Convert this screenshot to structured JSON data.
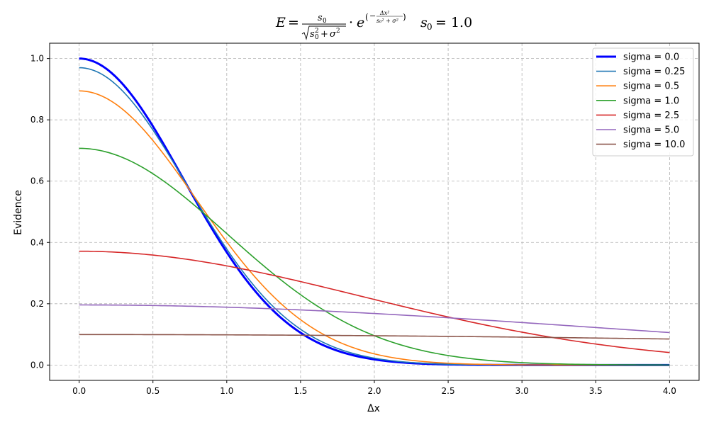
{
  "chart_data": {
    "type": "line",
    "title": {
      "E": "E",
      "eq": "=",
      "s0": "s",
      "sub0": "0",
      "sqrt_s": "s",
      "sqrt_sub0": "0",
      "sqrt_sup2": "2",
      "plus": "+",
      "sigma": "σ",
      "sigma_sup2": "2",
      "dot": "·",
      "e": "e",
      "exp_paren_open": "(",
      "exp_minus": "−",
      "exp_num": "Δx²",
      "exp_den": "s₀² + σ²",
      "exp_paren_close": ")",
      "param": "s",
      "param_sub": "0",
      "param_eq": "= 1.0"
    },
    "xlabel": "Δx",
    "ylabel": "Evidence",
    "xlim": [
      -0.2,
      4.2
    ],
    "ylim": [
      -0.05,
      1.05
    ],
    "xticks": [
      "0.0",
      "0.5",
      "1.0",
      "1.5",
      "2.0",
      "2.5",
      "3.0",
      "3.5",
      "4.0"
    ],
    "yticks": [
      "0.0",
      "0.2",
      "0.4",
      "0.6",
      "0.8",
      "1.0"
    ],
    "grid": true,
    "grid_style": "dashed",
    "legend_position": "top-right",
    "x_range": [
      0,
      4
    ],
    "s0": 1.0,
    "formula": "E = s0 / sqrt(s0^2 + sigma^2) * exp(-dx^2 / (s0^2 + sigma^2))",
    "series": [
      {
        "name": "sigma = 0.0",
        "sigma": 0.0,
        "color": "#0000ff",
        "thick": true,
        "points": [
          [
            0,
            1.0
          ],
          [
            0.25,
            0.939
          ],
          [
            0.5,
            0.779
          ],
          [
            0.75,
            0.57
          ],
          [
            1.0,
            0.368
          ],
          [
            1.25,
            0.21
          ],
          [
            1.5,
            0.105
          ],
          [
            1.75,
            0.047
          ],
          [
            2.0,
            0.018
          ],
          [
            2.5,
            0.002
          ],
          [
            3.0,
            0.0001
          ],
          [
            3.5,
            0.0
          ],
          [
            4.0,
            0.0
          ]
        ]
      },
      {
        "name": "sigma = 0.25",
        "sigma": 0.25,
        "color": "#1f77b4",
        "thick": false,
        "points": [
          [
            0,
            0.97
          ],
          [
            0.25,
            0.914
          ],
          [
            0.5,
            0.765
          ],
          [
            0.75,
            0.571
          ],
          [
            1.0,
            0.378
          ],
          [
            1.25,
            0.223
          ],
          [
            1.5,
            0.117
          ],
          [
            1.75,
            0.054
          ],
          [
            2.0,
            0.022
          ],
          [
            2.5,
            0.003
          ],
          [
            3.0,
            0.0002
          ],
          [
            3.5,
            0.0
          ],
          [
            4.0,
            0.0
          ]
        ]
      },
      {
        "name": "sigma = 0.5",
        "sigma": 0.5,
        "color": "#ff7f0e",
        "thick": false,
        "points": [
          [
            0,
            0.894
          ],
          [
            0.25,
            0.851
          ],
          [
            0.5,
            0.734
          ],
          [
            0.75,
            0.57
          ],
          [
            1.0,
            0.402
          ],
          [
            1.25,
            0.256
          ],
          [
            1.5,
            0.147
          ],
          [
            1.75,
            0.077
          ],
          [
            2.0,
            0.036
          ],
          [
            2.5,
            0.006
          ],
          [
            3.0,
            0.0007
          ],
          [
            3.5,
            0.0001
          ],
          [
            4.0,
            0.0
          ]
        ]
      },
      {
        "name": "sigma = 1.0",
        "sigma": 1.0,
        "color": "#2ca02c",
        "thick": false,
        "points": [
          [
            0,
            0.707
          ],
          [
            0.25,
            0.686
          ],
          [
            0.5,
            0.624
          ],
          [
            0.75,
            0.535
          ],
          [
            1.0,
            0.429
          ],
          [
            1.25,
            0.323
          ],
          [
            1.5,
            0.23
          ],
          [
            1.75,
            0.154
          ],
          [
            2.0,
            0.096
          ],
          [
            2.5,
            0.031
          ],
          [
            3.0,
            0.008
          ],
          [
            3.5,
            0.002
          ],
          [
            4.0,
            0.0002
          ]
        ]
      },
      {
        "name": "sigma = 2.5",
        "sigma": 2.5,
        "color": "#d62728",
        "thick": false,
        "points": [
          [
            0,
            0.371
          ],
          [
            0.5,
            0.358
          ],
          [
            1.0,
            0.322
          ],
          [
            1.5,
            0.271
          ],
          [
            2.0,
            0.213
          ],
          [
            2.5,
            0.156
          ],
          [
            3.0,
            0.107
          ],
          [
            3.5,
            0.069
          ],
          [
            4.0,
            0.041
          ]
        ]
      },
      {
        "name": "sigma = 5.0",
        "sigma": 5.0,
        "color": "#9467bd",
        "thick": false,
        "points": [
          [
            0,
            0.196
          ],
          [
            0.5,
            0.194
          ],
          [
            1.0,
            0.189
          ],
          [
            1.5,
            0.18
          ],
          [
            2.0,
            0.168
          ],
          [
            2.5,
            0.154
          ],
          [
            3.0,
            0.138
          ],
          [
            3.5,
            0.122
          ],
          [
            4.0,
            0.106
          ]
        ]
      },
      {
        "name": "sigma = 10.0",
        "sigma": 10.0,
        "color": "#8c564b",
        "thick": false,
        "points": [
          [
            0,
            0.0995
          ],
          [
            0.5,
            0.0993
          ],
          [
            1.0,
            0.0985
          ],
          [
            1.5,
            0.0973
          ],
          [
            2.0,
            0.0956
          ],
          [
            2.5,
            0.0935
          ],
          [
            3.0,
            0.091
          ],
          [
            3.5,
            0.0881
          ],
          [
            4.0,
            0.0849
          ]
        ]
      }
    ]
  }
}
